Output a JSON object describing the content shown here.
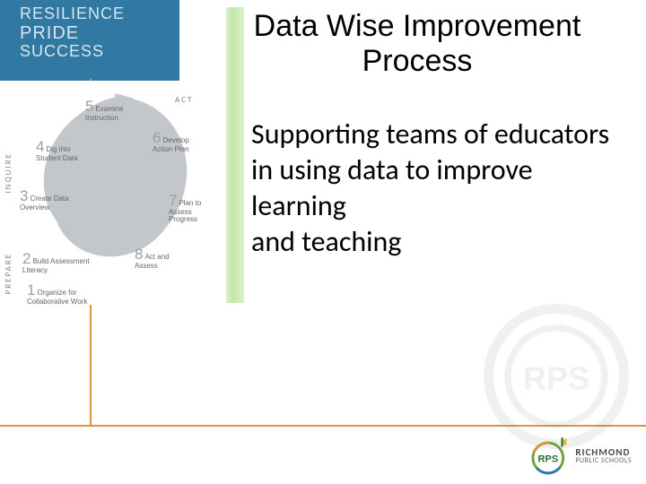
{
  "blue_panel": {
    "l1": "RESILIENCE",
    "l2": "PRIDE",
    "l3": "SUCCESS"
  },
  "title": "Data Wise Improvement Process",
  "body": "Supporting teams of educators  in using data    to  improve learning\nand  teaching",
  "accent_color": "#8fd060",
  "connector_color": "#d9963a",
  "blue": "#3178a3",
  "cycle": {
    "spiral_color": "#bfc3c7",
    "phases": {
      "prepare": "PREPARE",
      "inquire": "INQUIRE",
      "act": "ACT"
    },
    "steps": [
      {
        "n": "1",
        "label": "Organize for\nCollaborative Work"
      },
      {
        "n": "2",
        "label": "Build Assessment\nLiteracy"
      },
      {
        "n": "3",
        "label": "Create Data\nOverview"
      },
      {
        "n": "4",
        "label": "Dig into\nStudent Data"
      },
      {
        "n": "5",
        "label": "Examine\nInstruction"
      },
      {
        "n": "6",
        "label": "Develop\nAction Plan"
      },
      {
        "n": "7",
        "label": "Plan to Assess\nProgress"
      },
      {
        "n": "8",
        "label": "Act and\nAssess"
      }
    ]
  },
  "logo": {
    "rps": "RPS",
    "name": "RICHMOND",
    "sub": "PUBLIC SCHOOLS"
  }
}
